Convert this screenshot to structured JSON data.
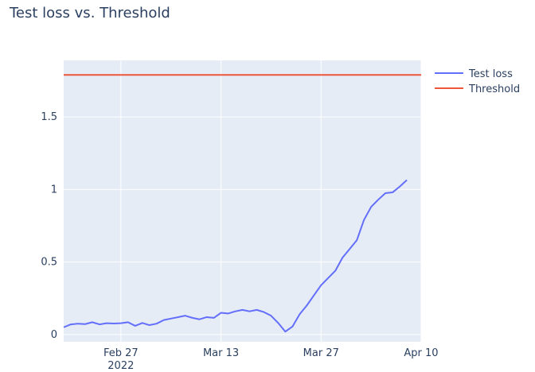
{
  "chart_data": {
    "type": "line",
    "title": "Test loss vs. Threshold",
    "xlabel": "",
    "ylabel": "",
    "x_range": [
      "2022-02-19",
      "2022-04-10"
    ],
    "ylim": [
      -0.05,
      1.89
    ],
    "grid": true,
    "legend_position": "top-right",
    "x_ticks": [
      {
        "date": "2022-02-27",
        "label": "Feb 27",
        "sublabel": "2022"
      },
      {
        "date": "2022-03-13",
        "label": "Mar 13",
        "sublabel": ""
      },
      {
        "date": "2022-03-27",
        "label": "Mar 27",
        "sublabel": ""
      },
      {
        "date": "2022-04-10",
        "label": "Apr 10",
        "sublabel": ""
      }
    ],
    "y_ticks": [
      {
        "value": 0,
        "label": "0"
      },
      {
        "value": 0.5,
        "label": "0.5"
      },
      {
        "value": 1,
        "label": "1"
      },
      {
        "value": 1.5,
        "label": "1.5"
      }
    ],
    "series": [
      {
        "name": "Test loss",
        "color": "#636efa",
        "points": [
          [
            "2022-02-19",
            0.05
          ],
          [
            "2022-02-20",
            0.07
          ],
          [
            "2022-02-21",
            0.075
          ],
          [
            "2022-02-22",
            0.072
          ],
          [
            "2022-02-23",
            0.085
          ],
          [
            "2022-02-24",
            0.07
          ],
          [
            "2022-02-25",
            0.078
          ],
          [
            "2022-02-26",
            0.076
          ],
          [
            "2022-02-27",
            0.078
          ],
          [
            "2022-02-28",
            0.085
          ],
          [
            "2022-03-01",
            0.06
          ],
          [
            "2022-03-02",
            0.08
          ],
          [
            "2022-03-03",
            0.065
          ],
          [
            "2022-03-04",
            0.075
          ],
          [
            "2022-03-05",
            0.1
          ],
          [
            "2022-03-06",
            0.11
          ],
          [
            "2022-03-07",
            0.12
          ],
          [
            "2022-03-08",
            0.13
          ],
          [
            "2022-03-09",
            0.115
          ],
          [
            "2022-03-10",
            0.105
          ],
          [
            "2022-03-11",
            0.12
          ],
          [
            "2022-03-12",
            0.115
          ],
          [
            "2022-03-13",
            0.15
          ],
          [
            "2022-03-14",
            0.145
          ],
          [
            "2022-03-15",
            0.16
          ],
          [
            "2022-03-16",
            0.17
          ],
          [
            "2022-03-17",
            0.16
          ],
          [
            "2022-03-18",
            0.17
          ],
          [
            "2022-03-19",
            0.155
          ],
          [
            "2022-03-20",
            0.13
          ],
          [
            "2022-03-21",
            0.08
          ],
          [
            "2022-03-22",
            0.02
          ],
          [
            "2022-03-23",
            0.055
          ],
          [
            "2022-03-24",
            0.14
          ],
          [
            "2022-03-25",
            0.2
          ],
          [
            "2022-03-26",
            0.27
          ],
          [
            "2022-03-27",
            0.34
          ],
          [
            "2022-03-28",
            0.39
          ],
          [
            "2022-03-29",
            0.44
          ],
          [
            "2022-03-30",
            0.53
          ],
          [
            "2022-03-31",
            0.59
          ],
          [
            "2022-04-01",
            0.65
          ],
          [
            "2022-04-02",
            0.79
          ],
          [
            "2022-04-03",
            0.88
          ],
          [
            "2022-04-04",
            0.93
          ],
          [
            "2022-04-05",
            0.975
          ],
          [
            "2022-04-06",
            0.98
          ],
          [
            "2022-04-07",
            1.02
          ],
          [
            "2022-04-08",
            1.065
          ]
        ]
      },
      {
        "name": "Threshold",
        "color": "#ef553b",
        "points": [
          [
            "2022-02-19",
            1.79
          ],
          [
            "2022-04-10",
            1.79
          ]
        ]
      }
    ]
  }
}
